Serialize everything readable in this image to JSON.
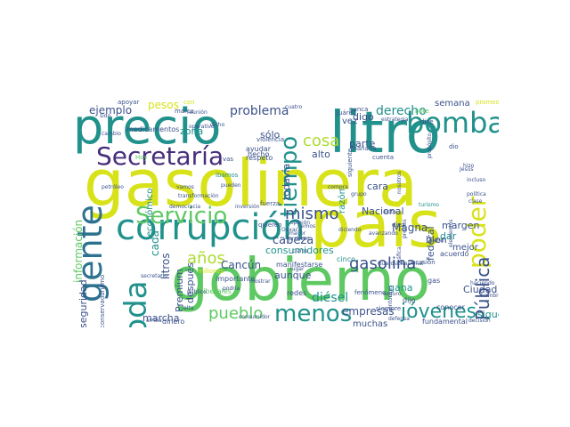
{
  "palette": {
    "background": "#ffffff",
    "dark_purple": "#472d7b",
    "indigo": "#3b528b",
    "blue": "#2c728e",
    "teal": "#21918c",
    "green_teal": "#28ae80",
    "green": "#5ec962",
    "lime": "#addc30",
    "yellow": "#d8e219"
  },
  "words": [
    {
      "text": "gasolinera"
    },
    {
      "text": "gobierno"
    },
    {
      "text": "país"
    },
    {
      "text": "litro"
    },
    {
      "text": "precio"
    },
    {
      "text": "corrupción"
    },
    {
      "text": "gente"
    },
    {
      "text": "bomba"
    },
    {
      "text": "Servicio"
    },
    {
      "text": "Secretaría"
    },
    {
      "text": "tiempo"
    },
    {
      "text": "toda"
    },
    {
      "text": "menos"
    },
    {
      "text": "poder"
    },
    {
      "text": "años"
    },
    {
      "text": "jóvenes"
    },
    {
      "text": "mismo"
    },
    {
      "text": "gasolina"
    },
    {
      "text": "pueblo"
    },
    {
      "text": "Pública"
    },
    {
      "text": "información"
    },
    {
      "text": "cosa"
    },
    {
      "text": "problema"
    },
    {
      "text": "derecho"
    },
    {
      "text": "cabeza"
    },
    {
      "text": "consumidores"
    },
    {
      "text": "ejemplo"
    },
    {
      "text": "pesos"
    },
    {
      "text": "diésel"
    },
    {
      "text": "empresas"
    },
    {
      "text": "Nacional"
    },
    {
      "text": "Magna"
    },
    {
      "text": "federal"
    },
    {
      "text": "combustible"
    },
    {
      "text": "margen"
    },
    {
      "text": "mejor"
    },
    {
      "text": "seguridad"
    },
    {
      "text": "cada"
    },
    {
      "text": "litros"
    },
    {
      "text": "Premium"
    },
    {
      "text": "Cancún"
    },
    {
      "text": "marcha"
    },
    {
      "text": "después"
    },
    {
      "text": "económico"
    },
    {
      "text": "zona"
    },
    {
      "text": "sólo"
    },
    {
      "text": "todavía"
    },
    {
      "text": "alto"
    },
    {
      "text": "parte"
    },
    {
      "text": "digo"
    },
    {
      "text": "vez"
    },
    {
      "text": "semana"
    },
    {
      "text": "sigue"
    },
    {
      "text": "muchas"
    },
    {
      "text": "gana"
    },
    {
      "text": "Ciudad"
    },
    {
      "text": "bien"
    },
    {
      "text": "dar"
    },
    {
      "text": "cara"
    },
    {
      "text": "razón"
    },
    {
      "text": "aunque"
    },
    {
      "text": "hicieron"
    },
    {
      "text": "fundamental"
    },
    {
      "text": "manifestarse"
    },
    {
      "text": "liberales"
    },
    {
      "text": "importante"
    },
    {
      "text": "redes"
    },
    {
      "text": "cinco"
    },
    {
      "text": "acuerdo"
    },
    {
      "text": "conocer"
    },
    {
      "text": "fenómeno"
    },
    {
      "text": "medicamentos"
    },
    {
      "text": "respeto"
    },
    {
      "text": "ayudar"
    },
    {
      "text": "hecho"
    },
    {
      "text": "millones"
    },
    {
      "text": "dinero"
    },
    {
      "text": "conservadurismo"
    },
    {
      "text": "nunca"
    },
    {
      "text": "Juárez"
    },
    {
      "text": "bote"
    },
    {
      "text": "dice"
    },
    {
      "text": "dijo"
    },
    {
      "text": "dio"
    },
    {
      "text": "mañana"
    },
    {
      "text": "cuenta"
    },
    {
      "text": "siguiente"
    },
    {
      "text": "fuerza"
    },
    {
      "text": "diez"
    },
    {
      "text": "siempre"
    },
    {
      "text": "ocasión"
    },
    {
      "text": "gas"
    },
    {
      "text": "apoyar"
    },
    {
      "text": "con"
    },
    {
      "text": "marca"
    },
    {
      "text": "reunión"
    },
    {
      "text": "cuatro"
    },
    {
      "text": "dicho"
    },
    {
      "text": "estrategia"
    },
    {
      "text": "propósito"
    },
    {
      "text": "promedio"
    },
    {
      "text": "sido"
    },
    {
      "text": "cambio"
    },
    {
      "text": "operativo"
    },
    {
      "text": "violencia"
    },
    {
      "text": "vamos"
    },
    {
      "text": "pueden"
    },
    {
      "text": "vas"
    },
    {
      "text": "ibamos"
    },
    {
      "text": "quieren"
    },
    {
      "text": "Hoy"
    },
    {
      "text": "petróleo"
    },
    {
      "text": "democracia"
    },
    {
      "text": "inversión"
    },
    {
      "text": "opinión"
    },
    {
      "text": "turismo"
    },
    {
      "text": "hombre"
    },
    {
      "text": "haciendo"
    },
    {
      "text": "decisión"
    },
    {
      "text": "entonces"
    },
    {
      "text": "nosotros"
    },
    {
      "text": "grupo"
    },
    {
      "text": "avanzando"
    },
    {
      "text": "diciendo"
    },
    {
      "text": "mayor"
    },
    {
      "text": "compra"
    },
    {
      "text": "lugar"
    },
    {
      "text": "secretario"
    },
    {
      "text": "público"
    },
    {
      "text": "podría"
    },
    {
      "text": "falta"
    },
    {
      "text": "consumidor"
    },
    {
      "text": "arriba"
    },
    {
      "text": "defensa"
    },
    {
      "text": "Guardia Nacional"
    },
    {
      "text": "elementos"
    },
    {
      "text": "política"
    },
    {
      "text": "clase"
    },
    {
      "text": "incluso"
    },
    {
      "text": "hizo"
    },
    {
      "text": "Jesús"
    },
    {
      "text": "claros"
    },
    {
      "text": "proceso"
    },
    {
      "text": "éxito"
    },
    {
      "text": "transformación"
    },
    {
      "text": "precios"
    },
    {
      "text": "gráfica"
    },
    {
      "text": "seguro"
    },
    {
      "text": "hemos"
    },
    {
      "text": "Oaxaca"
    },
    {
      "text": "mostrar"
    },
    {
      "text": "hacer"
    }
  ]
}
